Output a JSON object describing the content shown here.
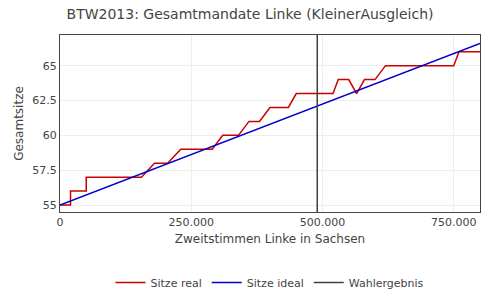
{
  "chart_data": {
    "type": "line",
    "title": "BTW2013: Gesamtmandate Linke (KleinerAusgleich)",
    "x_label": "Zweitstimmen Linke in Sachsen",
    "y_label": "Gesamtsitze",
    "xlim": [
      0,
      800000
    ],
    "ylim": [
      54.5,
      67.2
    ],
    "xticks": [
      0,
      {
        "value": 250000,
        "label": "250.000"
      },
      {
        "value": 500000,
        "label": "500.000"
      },
      {
        "value": 750000,
        "label": "750.000"
      }
    ],
    "yticks": [
      55,
      57.5,
      60,
      62.5,
      65
    ],
    "grid": true,
    "legend": "bottom",
    "series": [
      {
        "name": "Sitze real",
        "color": "#cc0000",
        "line_style": "solid",
        "x": [
          0,
          20000,
          20001,
          50000,
          50001,
          75000,
          75001,
          105000,
          105001,
          130000,
          130001,
          155000,
          155001,
          180000,
          180001,
          205000,
          205001,
          230000,
          230001,
          255000,
          255001,
          275000,
          275001,
          290000,
          290001,
          310000,
          310001,
          325000,
          325001,
          340000,
          340001,
          360000,
          360001,
          380000,
          380001,
          400000,
          400001,
          415000,
          415001,
          420000,
          420001,
          435000,
          435001,
          450000,
          450001,
          465000,
          465001,
          490000,
          490001,
          500000,
          500001,
          515000,
          515001,
          520000,
          520001,
          530000,
          530001,
          550000,
          550001,
          565000,
          565001,
          580000,
          580001,
          600000,
          600001,
          620000,
          620001,
          635000,
          635001,
          650000,
          650001,
          660000,
          660001,
          670000,
          670001,
          680000,
          680001,
          700000,
          700001,
          730000,
          730001,
          750000,
          750001,
          760000,
          760001,
          775000,
          775001,
          790000,
          790001,
          800000
        ],
        "values": [
          55,
          55,
          56,
          56,
          57,
          57,
          57,
          57,
          57,
          57,
          57,
          57,
          57,
          58,
          58,
          58,
          58,
          59,
          59,
          59,
          59,
          59,
          59,
          59,
          59,
          60,
          60,
          60,
          60,
          60,
          60,
          61,
          61,
          61,
          61,
          62,
          62,
          62,
          62,
          62,
          62,
          62,
          62,
          63,
          63,
          63,
          63,
          63,
          63,
          63,
          63,
          63,
          63,
          63,
          63,
          64,
          64,
          64,
          64,
          63,
          63,
          64,
          64,
          64,
          64,
          65,
          65,
          65,
          65,
          65,
          65,
          65,
          65,
          65,
          65,
          65,
          65,
          65,
          65,
          65,
          65,
          65,
          65,
          66,
          66,
          66,
          66,
          66,
          66,
          66
        ]
      },
      {
        "name": "Sitze ideal",
        "color": "#0000cc",
        "line_style": "solid",
        "x": [
          0,
          800000
        ],
        "values": [
          55.0,
          66.6
        ]
      },
      {
        "name": "Wahlergebnis",
        "color": "#404040",
        "line_style": "solid",
        "x": [
          490000,
          490000
        ],
        "values": [
          54.5,
          67.2
        ]
      }
    ]
  }
}
